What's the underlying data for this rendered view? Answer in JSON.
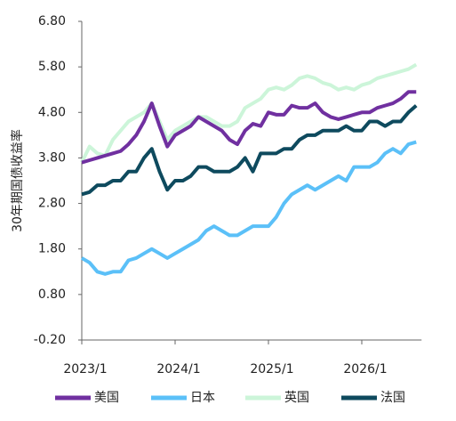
{
  "chart_data": {
    "type": "line",
    "y_label": "30年期国债收益率",
    "categories": [
      "2023/1",
      null,
      null,
      null,
      null,
      null,
      null,
      null,
      null,
      null,
      null,
      null,
      "2024/1",
      null,
      null,
      null,
      null,
      null,
      null,
      null,
      null,
      null,
      null,
      null,
      "2025/1",
      null,
      null,
      null,
      null,
      null,
      null,
      null,
      null,
      null,
      null,
      null,
      "2026/1",
      null,
      null,
      null,
      null,
      null,
      null,
      null
    ],
    "series": [
      {
        "name": "美国",
        "color": "#7030a0",
        "values": [
          3.7,
          3.75,
          3.8,
          3.85,
          3.9,
          3.95,
          4.1,
          4.3,
          4.6,
          5.0,
          4.5,
          4.05,
          4.3,
          4.4,
          4.5,
          4.7,
          4.6,
          4.5,
          4.4,
          4.2,
          4.1,
          4.4,
          4.55,
          4.5,
          4.8,
          4.75,
          4.75,
          4.95,
          4.9,
          4.9,
          5.0,
          4.8,
          4.7,
          4.65,
          4.7,
          4.75,
          4.8,
          4.8,
          4.9,
          4.95,
          5.0,
          5.1,
          5.25,
          5.25
        ]
      },
      {
        "name": "日本",
        "color": "#5bc0f8",
        "values": [
          1.6,
          1.5,
          1.3,
          1.25,
          1.3,
          1.3,
          1.55,
          1.6,
          1.7,
          1.8,
          1.7,
          1.6,
          1.7,
          1.8,
          1.9,
          2.0,
          2.2,
          2.3,
          2.2,
          2.1,
          2.1,
          2.2,
          2.3,
          2.3,
          2.3,
          2.5,
          2.8,
          3.0,
          3.1,
          3.2,
          3.1,
          3.2,
          3.3,
          3.4,
          3.3,
          3.6,
          3.6,
          3.6,
          3.7,
          3.9,
          4.0,
          3.9,
          4.1,
          4.15
        ]
      },
      {
        "name": "英国",
        "color": "#ccf5d9",
        "values": [
          3.7,
          4.05,
          3.9,
          3.85,
          4.2,
          4.4,
          4.6,
          4.7,
          4.8,
          5.0,
          4.6,
          4.2,
          4.4,
          4.5,
          4.6,
          4.7,
          4.7,
          4.6,
          4.5,
          4.5,
          4.6,
          4.9,
          5.0,
          5.1,
          5.3,
          5.35,
          5.3,
          5.4,
          5.55,
          5.6,
          5.55,
          5.45,
          5.4,
          5.3,
          5.35,
          5.3,
          5.4,
          5.45,
          5.55,
          5.6,
          5.65,
          5.7,
          5.75,
          5.85
        ]
      },
      {
        "name": "法国",
        "color": "#0e4a5e",
        "values": [
          3.0,
          3.05,
          3.2,
          3.2,
          3.3,
          3.3,
          3.5,
          3.5,
          3.8,
          4.0,
          3.5,
          3.1,
          3.3,
          3.3,
          3.4,
          3.6,
          3.6,
          3.5,
          3.5,
          3.5,
          3.6,
          3.8,
          3.5,
          3.9,
          3.9,
          3.9,
          4.0,
          4.0,
          4.2,
          4.3,
          4.3,
          4.4,
          4.4,
          4.4,
          4.5,
          4.4,
          4.4,
          4.6,
          4.6,
          4.5,
          4.6,
          4.6,
          4.8,
          4.95
        ]
      }
    ],
    "ylim": [
      -0.2,
      6.8
    ],
    "yticks": [
      {
        "value": -0.2,
        "label": "-0.20"
      },
      {
        "value": 0.8,
        "label": "0.80"
      },
      {
        "value": 1.8,
        "label": "1.80"
      },
      {
        "value": 2.8,
        "label": "2.80"
      },
      {
        "value": 3.8,
        "label": "3.80"
      },
      {
        "value": 4.8,
        "label": "4.80"
      },
      {
        "value": 5.8,
        "label": "5.80"
      },
      {
        "value": 6.8,
        "label": "6.80"
      }
    ],
    "legend": "bottom"
  }
}
